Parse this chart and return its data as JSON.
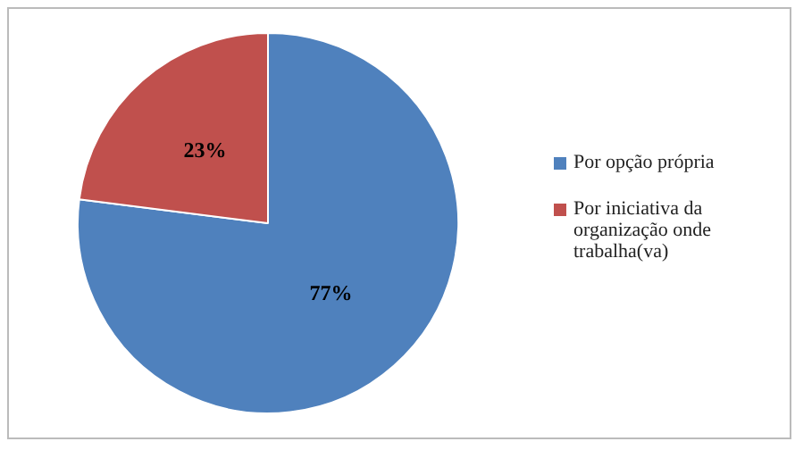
{
  "chart_data": {
    "type": "pie",
    "categories": [
      "Por opção própria",
      "Por iniciativa da organização onde trabalha(va)"
    ],
    "values": [
      77,
      23
    ],
    "colors": [
      "#4f81bd",
      "#c0504d"
    ],
    "value_labels": [
      "77%",
      "23%"
    ],
    "legend": "right"
  }
}
